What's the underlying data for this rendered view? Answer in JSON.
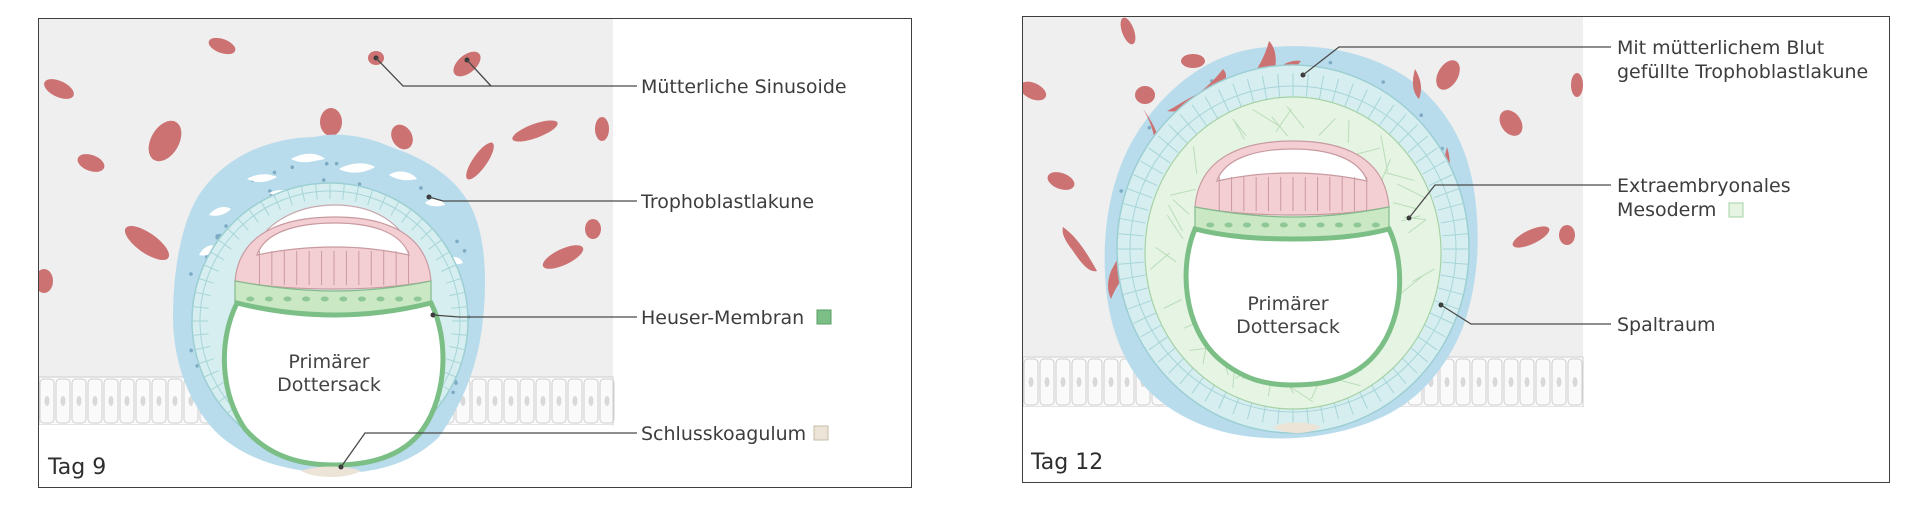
{
  "panels": [
    {
      "day_label": "Tag 9",
      "center_label_line1": "Primärer",
      "center_label_line2": "Dottersack",
      "labels": [
        {
          "text": "Mütterliche Sinusoide"
        },
        {
          "text": "Trophoblastlakune"
        },
        {
          "text": "Heuser-Membran",
          "swatch": "#7bbf86"
        },
        {
          "text": "Schlusskoagulum",
          "swatch": "#ece4d6"
        }
      ]
    },
    {
      "day_label": "Tag 12",
      "center_label_line1": "Primärer",
      "center_label_line2": "Dottersack",
      "labels": [
        {
          "text_line1": "Mit mütterlichem Blut",
          "text_line2": "gefüllte Trophoblastlakune"
        },
        {
          "text_line1": "Extraembryonales",
          "text_line2": "Mesoderm",
          "swatch": "#e6f5e3"
        },
        {
          "text": "Spaltraum"
        }
      ]
    }
  ],
  "colors": {
    "maternal_blood": "#cc7273",
    "syncytiotrophoblast": "#b9dcec",
    "cytotrophoblast": "#d6eef0",
    "epiblast": "#f3cfd3",
    "hypoblast": "#c9e8c3",
    "heuser_membrane": "#7bbf86",
    "extraembryonic_mesoderm": "#e6f5e3",
    "endometrium_bg": "#eeeeee",
    "uterine_epithelium": "#fbfbfb"
  }
}
